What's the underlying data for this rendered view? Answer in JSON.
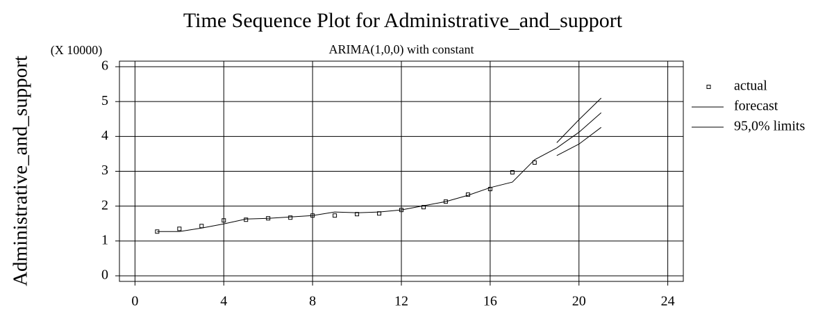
{
  "chart_data": {
    "type": "line",
    "title": "Time Sequence Plot for Administrative_and_support",
    "subtitle": "ARIMA(1,0,0) with constant",
    "y_label": "Administrative_and_support",
    "y_multiplier": "(X 10000)",
    "x": [
      1,
      2,
      3,
      4,
      5,
      6,
      7,
      8,
      9,
      10,
      11,
      12,
      13,
      14,
      15,
      16,
      17,
      18,
      19,
      20,
      21
    ],
    "series": [
      {
        "name": "actual",
        "color": "#000000",
        "values": [
          1.27,
          1.35,
          1.43,
          1.59,
          1.61,
          1.65,
          1.67,
          1.73,
          1.73,
          1.77,
          1.79,
          1.89,
          1.97,
          2.13,
          2.33,
          2.49,
          2.97,
          3.25,
          null,
          null,
          null
        ]
      },
      {
        "name": "forecast",
        "color": "#000000",
        "values": [
          1.27,
          1.27,
          1.37,
          1.49,
          1.63,
          1.65,
          1.69,
          1.73,
          1.83,
          1.81,
          1.83,
          1.89,
          2.01,
          2.13,
          2.31,
          2.53,
          2.69,
          3.33,
          3.67,
          4.12,
          4.68
        ]
      },
      {
        "name": "95,0% limits",
        "color": "#000000",
        "upper": [
          null,
          null,
          null,
          null,
          null,
          null,
          null,
          null,
          null,
          null,
          null,
          null,
          null,
          null,
          null,
          null,
          null,
          null,
          3.82,
          4.48,
          5.1
        ],
        "lower": [
          null,
          null,
          null,
          null,
          null,
          null,
          null,
          null,
          null,
          null,
          null,
          null,
          null,
          null,
          null,
          null,
          null,
          null,
          3.45,
          3.78,
          4.26
        ]
      }
    ],
    "xlim": [
      -0.7,
      24.7
    ],
    "xticks": [
      0,
      4,
      8,
      12,
      16,
      20,
      24
    ],
    "ylim": [
      -0.16,
      6.16
    ],
    "yticks": [
      0,
      1,
      2,
      3,
      4,
      5,
      6
    ],
    "grid": true,
    "legend": "right"
  }
}
